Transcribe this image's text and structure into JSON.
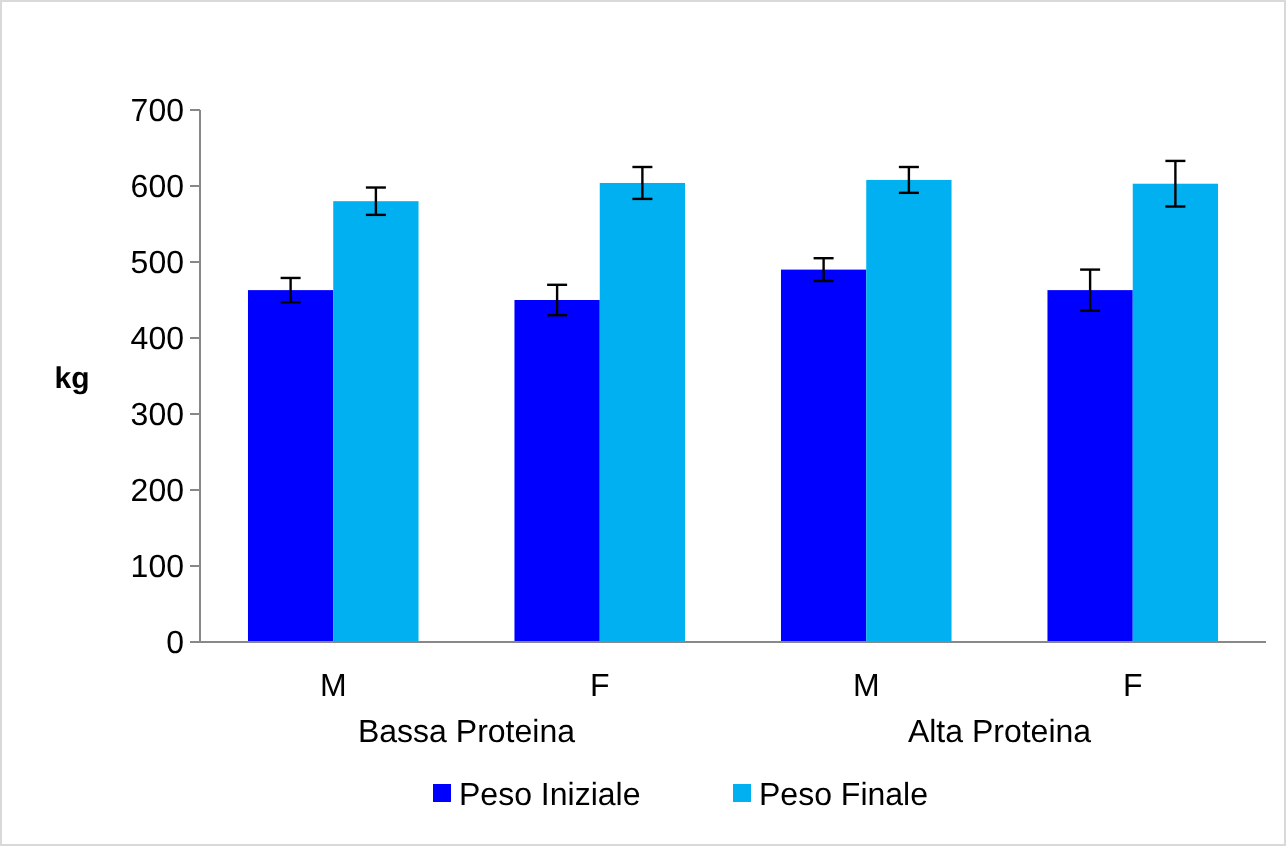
{
  "chart_data": {
    "type": "bar",
    "ylabel": "kg",
    "categories": [
      "M",
      "F",
      "M",
      "F"
    ],
    "series": [
      {
        "name": "Peso Iniziale",
        "color": "#0000ff",
        "values": [
          463,
          450,
          490,
          463
        ],
        "errors": [
          16,
          20,
          15,
          27
        ]
      },
      {
        "name": "Peso Finale",
        "color": "#00b0f0",
        "values": [
          580,
          604,
          608,
          603
        ],
        "errors": [
          18,
          21,
          17,
          30
        ]
      }
    ],
    "annotations": [
      "Bassa Proteina",
      "Alta Proteina"
    ],
    "ylim": [
      0,
      700
    ],
    "yticks": [
      0,
      100,
      200,
      300,
      400,
      500,
      600,
      700
    ],
    "grid": false,
    "legend": "bottom"
  }
}
